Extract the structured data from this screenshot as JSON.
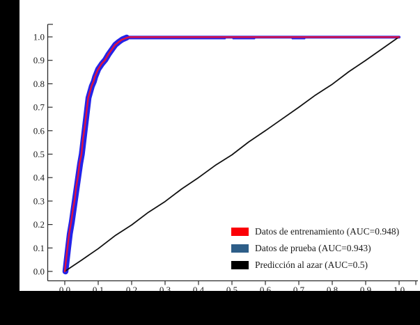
{
  "chart_data": {
    "type": "line",
    "title": "",
    "xlabel": "",
    "ylabel": "",
    "xlim": [
      0.0,
      1.0
    ],
    "ylim": [
      0.0,
      1.0
    ],
    "xticks": [
      "0.0",
      "0.1",
      "0.2",
      "0.3",
      "0.4",
      "0.5",
      "0.6",
      "0.7",
      "0.8",
      "0.9",
      "1.0"
    ],
    "yticks": [
      "0.0",
      "0.1",
      "0.2",
      "0.3",
      "0.4",
      "0.5",
      "0.6",
      "0.7",
      "0.8",
      "0.9",
      "1.0"
    ],
    "grid": false,
    "legend_position": "lower right",
    "series": [
      {
        "name": "Datos de entrenamiento",
        "auc": 0.948,
        "label": "Datos de entrenamiento (AUC=0.948)",
        "color": "#e01240",
        "legend_swatch": "#fb0007",
        "points": [
          [
            0,
            0
          ],
          [
            0.004,
            0.05
          ],
          [
            0.008,
            0.1
          ],
          [
            0.013,
            0.16
          ],
          [
            0.019,
            0.21
          ],
          [
            0.024,
            0.26
          ],
          [
            0.03,
            0.31
          ],
          [
            0.034,
            0.36
          ],
          [
            0.04,
            0.41
          ],
          [
            0.044,
            0.46
          ],
          [
            0.05,
            0.5
          ],
          [
            0.054,
            0.56
          ],
          [
            0.06,
            0.62
          ],
          [
            0.065,
            0.68
          ],
          [
            0.07,
            0.74
          ],
          [
            0.076,
            0.77
          ],
          [
            0.08,
            0.79
          ],
          [
            0.086,
            0.81
          ],
          [
            0.09,
            0.83
          ],
          [
            0.099,
            0.86
          ],
          [
            0.11,
            0.885
          ],
          [
            0.12,
            0.9
          ],
          [
            0.13,
            0.925
          ],
          [
            0.14,
            0.945
          ],
          [
            0.15,
            0.965
          ],
          [
            0.161,
            0.978
          ],
          [
            0.171,
            0.988
          ],
          [
            0.181,
            0.994
          ],
          [
            0.192,
            0.999
          ],
          [
            1.0,
            0.999
          ]
        ]
      },
      {
        "name": "Datos de prueba",
        "auc": 0.943,
        "label": "Datos de prueba (AUC=0.943)",
        "color": "#2323e8",
        "legend_swatch": "#2e5e88",
        "points": [
          [
            0.002,
            0
          ],
          [
            0.006,
            0.05
          ],
          [
            0.01,
            0.1
          ],
          [
            0.015,
            0.16
          ],
          [
            0.021,
            0.21
          ],
          [
            0.026,
            0.26
          ],
          [
            0.031,
            0.31
          ],
          [
            0.036,
            0.36
          ],
          [
            0.041,
            0.41
          ],
          [
            0.046,
            0.46
          ],
          [
            0.051,
            0.5
          ],
          [
            0.056,
            0.56
          ],
          [
            0.061,
            0.62
          ],
          [
            0.066,
            0.68
          ],
          [
            0.071,
            0.74
          ],
          [
            0.077,
            0.77
          ],
          [
            0.081,
            0.79
          ],
          [
            0.087,
            0.81
          ],
          [
            0.091,
            0.83
          ],
          [
            0.1,
            0.862
          ],
          [
            0.111,
            0.885
          ],
          [
            0.121,
            0.902
          ],
          [
            0.131,
            0.926
          ],
          [
            0.141,
            0.946
          ],
          [
            0.151,
            0.966
          ],
          [
            0.162,
            0.979
          ],
          [
            0.172,
            0.989
          ],
          [
            0.185,
            0.997
          ]
        ],
        "flat_line": [
          [
            0.185,
            0.999
          ],
          [
            1.0,
            0.999
          ]
        ],
        "flat_peek_segments": [
          [
            0.192,
            0.479
          ],
          [
            0.504,
            0.567
          ],
          [
            0.681,
            0.717
          ]
        ]
      },
      {
        "name": "Predicción al azar",
        "auc": 0.5,
        "label": "Predicción al azar (AUC=0.5)",
        "color": "#101010",
        "legend_swatch": "#000000",
        "points": [
          [
            0,
            0
          ],
          [
            0.05,
            0.048
          ],
          [
            0.1,
            0.097
          ],
          [
            0.15,
            0.152
          ],
          [
            0.2,
            0.198
          ],
          [
            0.25,
            0.252
          ],
          [
            0.3,
            0.298
          ],
          [
            0.35,
            0.352
          ],
          [
            0.4,
            0.4
          ],
          [
            0.45,
            0.452
          ],
          [
            0.5,
            0.497
          ],
          [
            0.55,
            0.552
          ],
          [
            0.6,
            0.6
          ],
          [
            0.65,
            0.65
          ],
          [
            0.7,
            0.7
          ],
          [
            0.75,
            0.752
          ],
          [
            0.8,
            0.798
          ],
          [
            0.85,
            0.852
          ],
          [
            0.9,
            0.9
          ],
          [
            0.95,
            0.95
          ],
          [
            1.0,
            1.0
          ]
        ]
      }
    ],
    "axis_color": "#2a2a2a"
  }
}
